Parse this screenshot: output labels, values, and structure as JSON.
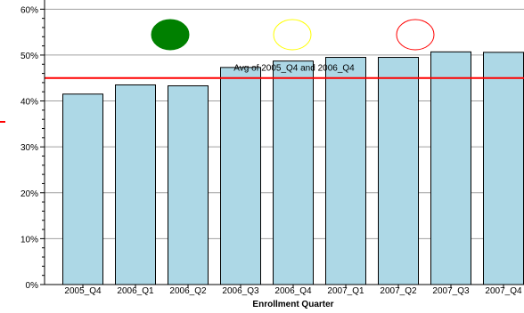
{
  "chart_data": {
    "type": "bar",
    "categories": [
      "2005_Q4",
      "2006_Q1",
      "2006_Q2",
      "2006_Q3",
      "2006_Q4",
      "2007_Q1",
      "2007_Q2",
      "2007_Q3",
      "2007_Q4"
    ],
    "values": [
      41.5,
      43.5,
      43.3,
      47.3,
      48.7,
      49.5,
      49.5,
      50.7,
      50.6
    ],
    "xlabel": "Enrollment Quarter",
    "ylabel": "",
    "ylim": [
      0,
      62
    ],
    "yticks": [
      0,
      10,
      20,
      30,
      40,
      50,
      60
    ],
    "ytick_labels": [
      "0%",
      "10%",
      "20%",
      "30%",
      "40%",
      "50%",
      "60%"
    ],
    "grid": true,
    "bar_color": "#add8e6",
    "bar_edge_color": "#000000",
    "reference_line": {
      "value": 45,
      "label": "Avg of 2005_Q4 and 2006_Q4",
      "color": "#ff0000"
    },
    "indicators": [
      {
        "name": "green-status",
        "fill": "#008000",
        "stroke": "#008000"
      },
      {
        "name": "yellow-status",
        "fill": "#ffffff",
        "stroke": "#ffff00"
      },
      {
        "name": "red-status",
        "fill": "#ffffff",
        "stroke": "#ff0000"
      }
    ]
  }
}
